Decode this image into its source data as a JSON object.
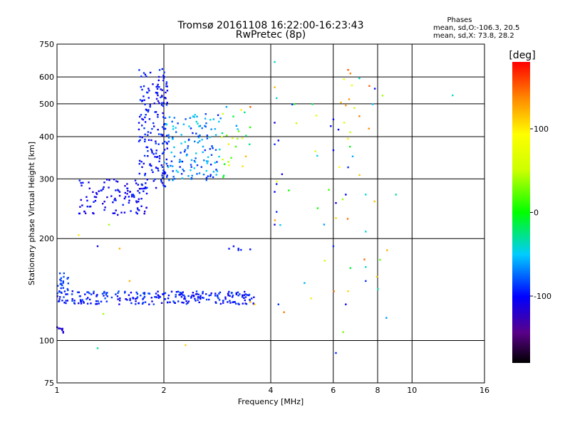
{
  "chart_data": {
    "type": "scatter",
    "title": "Tromsø 20161108 16:22:00-16:23:43",
    "subtitle": "RwPretec (8p)",
    "xlabel": "Frequency [MHz]",
    "ylabel": "Stationary phase Virtual Height [km]",
    "x_scale": "log",
    "y_scale": "log",
    "xlim": [
      1,
      16
    ],
    "ylim": [
      75,
      750
    ],
    "x_ticks": [
      1,
      2,
      4,
      6,
      8,
      10,
      16
    ],
    "x_tick_labels": [
      "1",
      "2",
      "4",
      "6",
      "8",
      "10",
      "16"
    ],
    "y_ticks": [
      75,
      100,
      200,
      300,
      400,
      500,
      600,
      750
    ],
    "y_tick_labels": [
      "75",
      "100",
      "200",
      "300",
      "400",
      "500",
      "600",
      "750"
    ],
    "grid": true,
    "phases_box": {
      "heading": "Phases",
      "line1": "mean, sd,O:-106.3, 20.5",
      "line2": "mean, sd,X:  73.8, 28.2"
    },
    "colorbar": {
      "label": "[deg]",
      "range": [
        -180,
        180
      ],
      "ticks": [
        100,
        0,
        -100
      ],
      "tick_labels": [
        "100",
        "0",
        "-100"
      ]
    },
    "clusters": [
      {
        "x": [
          1.0,
          1.05
        ],
        "y": [
          105,
          110
        ],
        "phase": [
          -110,
          -120
        ],
        "n": 8
      },
      {
        "x": [
          1.0,
          1.08
        ],
        "y": [
          140,
          160
        ],
        "phase": [
          -95,
          -80
        ],
        "n": 20
      },
      {
        "x": [
          1.0,
          3.6
        ],
        "y": [
          128,
          140
        ],
        "phase": [
          -110,
          -80
        ],
        "n": 260
      },
      {
        "x": [
          1.15,
          1.8
        ],
        "y": [
          235,
          300
        ],
        "phase": [
          -120,
          -90
        ],
        "n": 110
      },
      {
        "x": [
          1.7,
          2.05
        ],
        "y": [
          280,
          640
        ],
        "phase": [
          -110,
          -85
        ],
        "n": 190
      },
      {
        "x": [
          2.0,
          2.9
        ],
        "y": [
          295,
          470
        ],
        "phase": [
          -95,
          -40
        ],
        "n": 140
      },
      {
        "x": [
          2.9,
          3.5
        ],
        "y": [
          300,
          500
        ],
        "phase": [
          -80,
          110
        ],
        "n": 25
      },
      {
        "x": [
          3.0,
          3.5
        ],
        "y": [
          185,
          190
        ],
        "phase": [
          -100,
          -90
        ],
        "n": 6
      },
      {
        "x": [
          4.0,
          8.5
        ],
        "y": [
          95,
          650
        ],
        "phase": [
          -100,
          150
        ],
        "n": 45
      }
    ],
    "points": [
      {
        "x": 1.3,
        "y": 95,
        "phase": -30
      },
      {
        "x": 1.4,
        "y": 220,
        "phase": 40
      },
      {
        "x": 1.5,
        "y": 187,
        "phase": 120
      },
      {
        "x": 1.6,
        "y": 150,
        "phase": 120
      },
      {
        "x": 1.35,
        "y": 120,
        "phase": 40
      },
      {
        "x": 1.3,
        "y": 190,
        "phase": -110
      },
      {
        "x": 1.15,
        "y": 205,
        "phase": 100
      },
      {
        "x": 2.3,
        "y": 97,
        "phase": 110
      },
      {
        "x": 4.1,
        "y": 665,
        "phase": -40
      },
      {
        "x": 4.1,
        "y": 560,
        "phase": 120
      },
      {
        "x": 4.15,
        "y": 520,
        "phase": -40
      },
      {
        "x": 4.1,
        "y": 440,
        "phase": -110
      },
      {
        "x": 4.1,
        "y": 380,
        "phase": -90
      },
      {
        "x": 4.2,
        "y": 390,
        "phase": -100
      },
      {
        "x": 4.3,
        "y": 310,
        "phase": -110
      },
      {
        "x": 4.15,
        "y": 290,
        "phase": -95
      },
      {
        "x": 4.1,
        "y": 275,
        "phase": -100
      },
      {
        "x": 4.15,
        "y": 240,
        "phase": -90
      },
      {
        "x": 4.1,
        "y": 220,
        "phase": -110
      },
      {
        "x": 4.2,
        "y": 128,
        "phase": -90
      },
      {
        "x": 6.0,
        "y": 365,
        "phase": -100
      },
      {
        "x": 6.0,
        "y": 190,
        "phase": -90
      },
      {
        "x": 6.0,
        "y": 450,
        "phase": -100
      },
      {
        "x": 5.9,
        "y": 430,
        "phase": -100
      },
      {
        "x": 6.3,
        "y": 505,
        "phase": 120
      },
      {
        "x": 6.5,
        "y": 495,
        "phase": 130
      },
      {
        "x": 6.2,
        "y": 420,
        "phase": -100
      },
      {
        "x": 6.1,
        "y": 255,
        "phase": -110
      },
      {
        "x": 6.1,
        "y": 230,
        "phase": 110
      },
      {
        "x": 6.1,
        "y": 92,
        "phase": -90
      },
      {
        "x": 6.5,
        "y": 128,
        "phase": -100
      },
      {
        "x": 6.6,
        "y": 140,
        "phase": 110
      },
      {
        "x": 6.6,
        "y": 630,
        "phase": 150
      },
      {
        "x": 6.7,
        "y": 615,
        "phase": 140
      },
      {
        "x": 6.6,
        "y": 325,
        "phase": -90
      },
      {
        "x": 6.5,
        "y": 270,
        "phase": -100
      },
      {
        "x": 7.1,
        "y": 595,
        "phase": -40
      },
      {
        "x": 7.1,
        "y": 460,
        "phase": 140
      },
      {
        "x": 7.4,
        "y": 270,
        "phase": -40
      },
      {
        "x": 7.4,
        "y": 210,
        "phase": -40
      },
      {
        "x": 7.4,
        "y": 165,
        "phase": -40
      },
      {
        "x": 7.4,
        "y": 150,
        "phase": -90
      },
      {
        "x": 8.5,
        "y": 185,
        "phase": 120
      },
      {
        "x": 9.0,
        "y": 270,
        "phase": -30
      },
      {
        "x": 13.0,
        "y": 530,
        "phase": -40
      },
      {
        "x": 3.0,
        "y": 490,
        "phase": -60
      },
      {
        "x": 3.3,
        "y": 480,
        "phase": 100
      },
      {
        "x": 3.5,
        "y": 490,
        "phase": 150
      },
      {
        "x": 3.4,
        "y": 350,
        "phase": 120
      },
      {
        "x": 3.5,
        "y": 130,
        "phase": 120
      },
      {
        "x": 3.6,
        "y": 128,
        "phase": 110
      }
    ]
  }
}
